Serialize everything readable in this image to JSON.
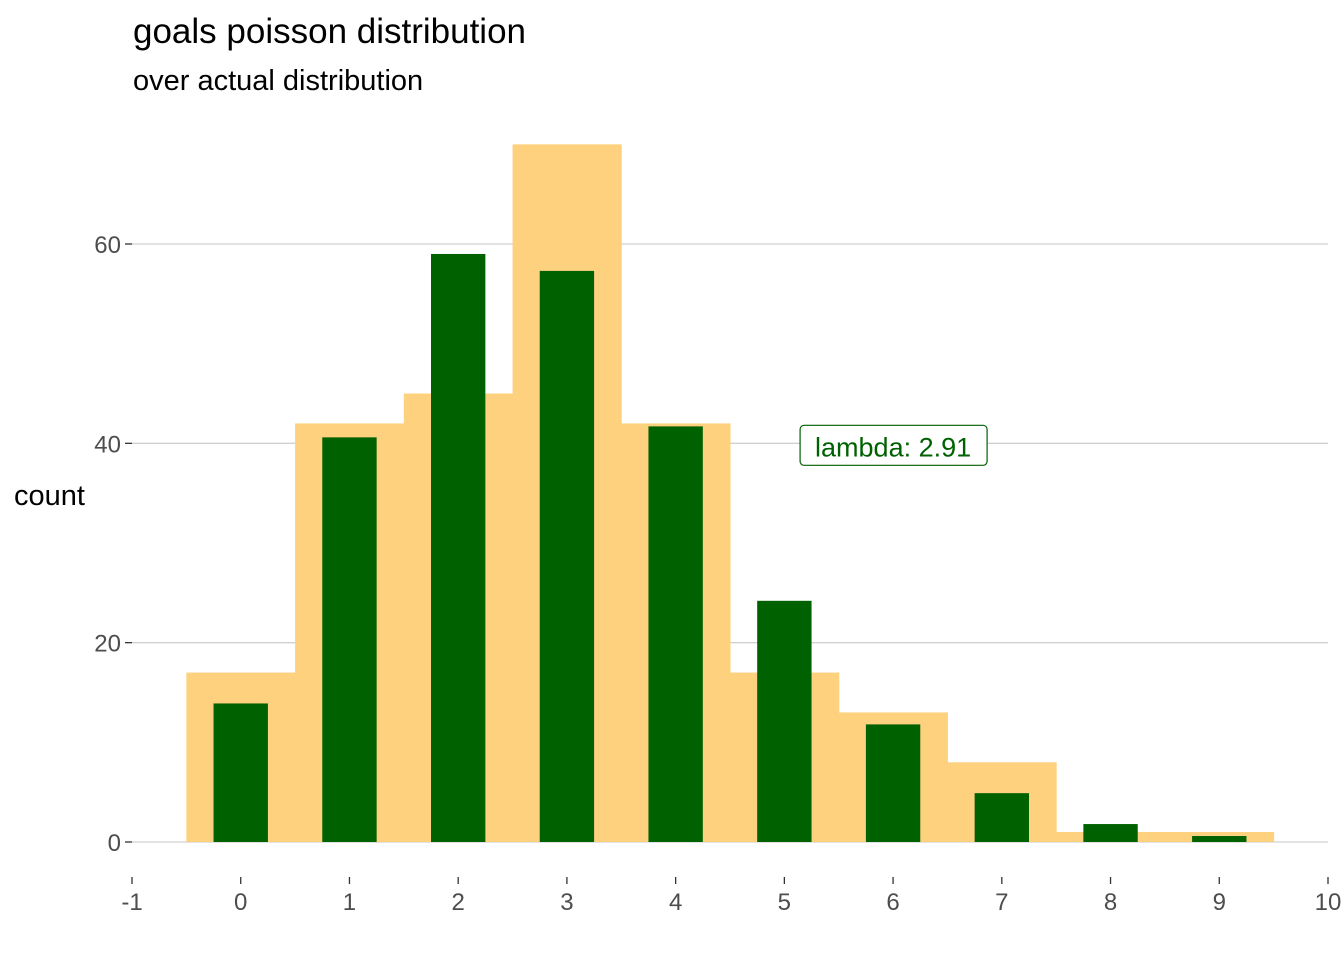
{
  "chart_data": {
    "type": "bar",
    "title": "goals poisson distribution",
    "subtitle": "over actual distribution",
    "xlabel": "",
    "ylabel": "count",
    "x": [
      0,
      1,
      2,
      3,
      4,
      5,
      6,
      7,
      8,
      9
    ],
    "series": [
      {
        "name": "actual",
        "color": "#fdd17e",
        "values": [
          17,
          42,
          45,
          70,
          42,
          17,
          13,
          8,
          1,
          1
        ]
      },
      {
        "name": "poisson",
        "color": "#006100",
        "values": [
          13.9,
          40.6,
          59.0,
          57.3,
          41.7,
          24.2,
          11.8,
          4.9,
          1.8,
          0.6
        ]
      }
    ],
    "xlim": [
      -1,
      10
    ],
    "ylim": [
      0,
      70
    ],
    "xticks": [
      "-1",
      "0",
      "1",
      "2",
      "3",
      "4",
      "5",
      "6",
      "7",
      "8",
      "9",
      "10"
    ],
    "yticks": [
      "0",
      "20",
      "40",
      "60"
    ],
    "grid": true,
    "annotation": {
      "text": "lambda: 2.91",
      "x": 6.0,
      "y": 40,
      "color": "#006100"
    }
  }
}
